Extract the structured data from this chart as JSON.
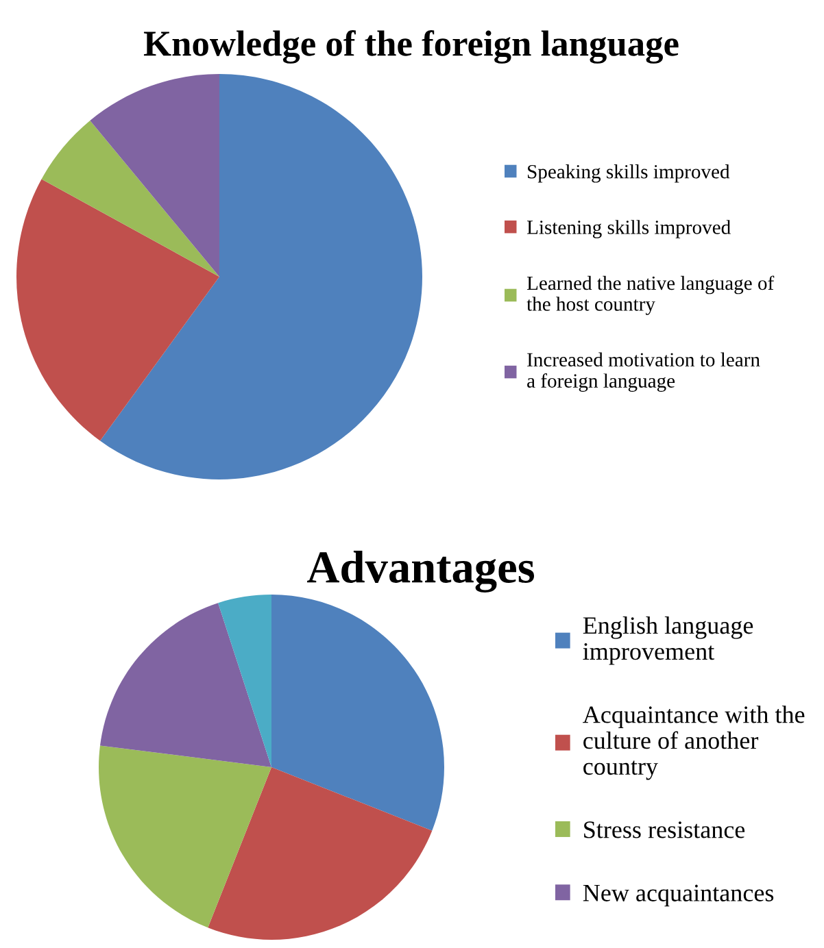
{
  "chart_data": [
    {
      "type": "pie",
      "title": "Knowledge of the foreign language",
      "categories": [
        "Speaking skills improved",
        "Listening skills improved",
        "Learned the native language of\nthe host country",
        "Increased motivation to learn\na foreign language"
      ],
      "values": [
        60,
        23,
        6,
        11
      ],
      "colors": [
        "#4f81bd",
        "#c0504d",
        "#9bbb59",
        "#8064a2"
      ],
      "legend": "right"
    },
    {
      "type": "pie",
      "title": "Advantages",
      "categories": [
        "English language\nimprovement",
        "Acquaintance with the\nculture of another\ncountry",
        "Stress resistance",
        "New acquaintances",
        null
      ],
      "values": [
        31,
        25,
        21,
        18,
        5
      ],
      "colors": [
        "#4f81bd",
        "#c0504d",
        "#9bbb59",
        "#8064a2",
        "#4bacc6"
      ],
      "legend": "right"
    }
  ]
}
